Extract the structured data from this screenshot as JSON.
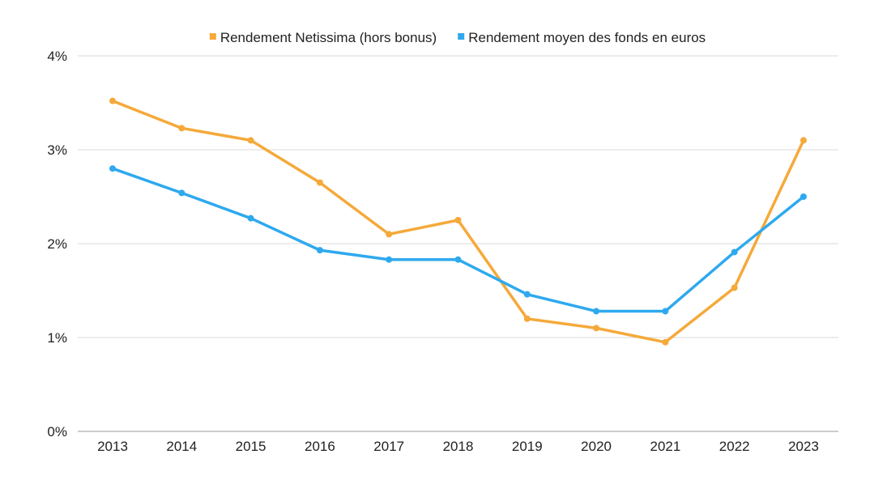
{
  "chart_data": {
    "type": "line",
    "categories": [
      "2013",
      "2014",
      "2015",
      "2016",
      "2017",
      "2018",
      "2019",
      "2020",
      "2021",
      "2022",
      "2023"
    ],
    "series": [
      {
        "name": "Rendement Netissima (hors bonus)",
        "color": "#f5a93a",
        "values": [
          3.52,
          3.23,
          3.1,
          2.65,
          2.1,
          2.25,
          1.2,
          1.1,
          0.95,
          1.53,
          3.1
        ]
      },
      {
        "name": "Rendement moyen des fonds en euros",
        "color": "#2ea9ee",
        "values": [
          2.8,
          2.54,
          2.27,
          1.93,
          1.83,
          1.83,
          1.46,
          1.28,
          1.28,
          1.91,
          2.5
        ]
      }
    ],
    "yticks": [
      "0%",
      "1%",
      "2%",
      "3%",
      "4%"
    ],
    "ylim": [
      0,
      4
    ],
    "grid": true,
    "legend_position": "top-center",
    "title": "",
    "xlabel": "",
    "ylabel": ""
  }
}
